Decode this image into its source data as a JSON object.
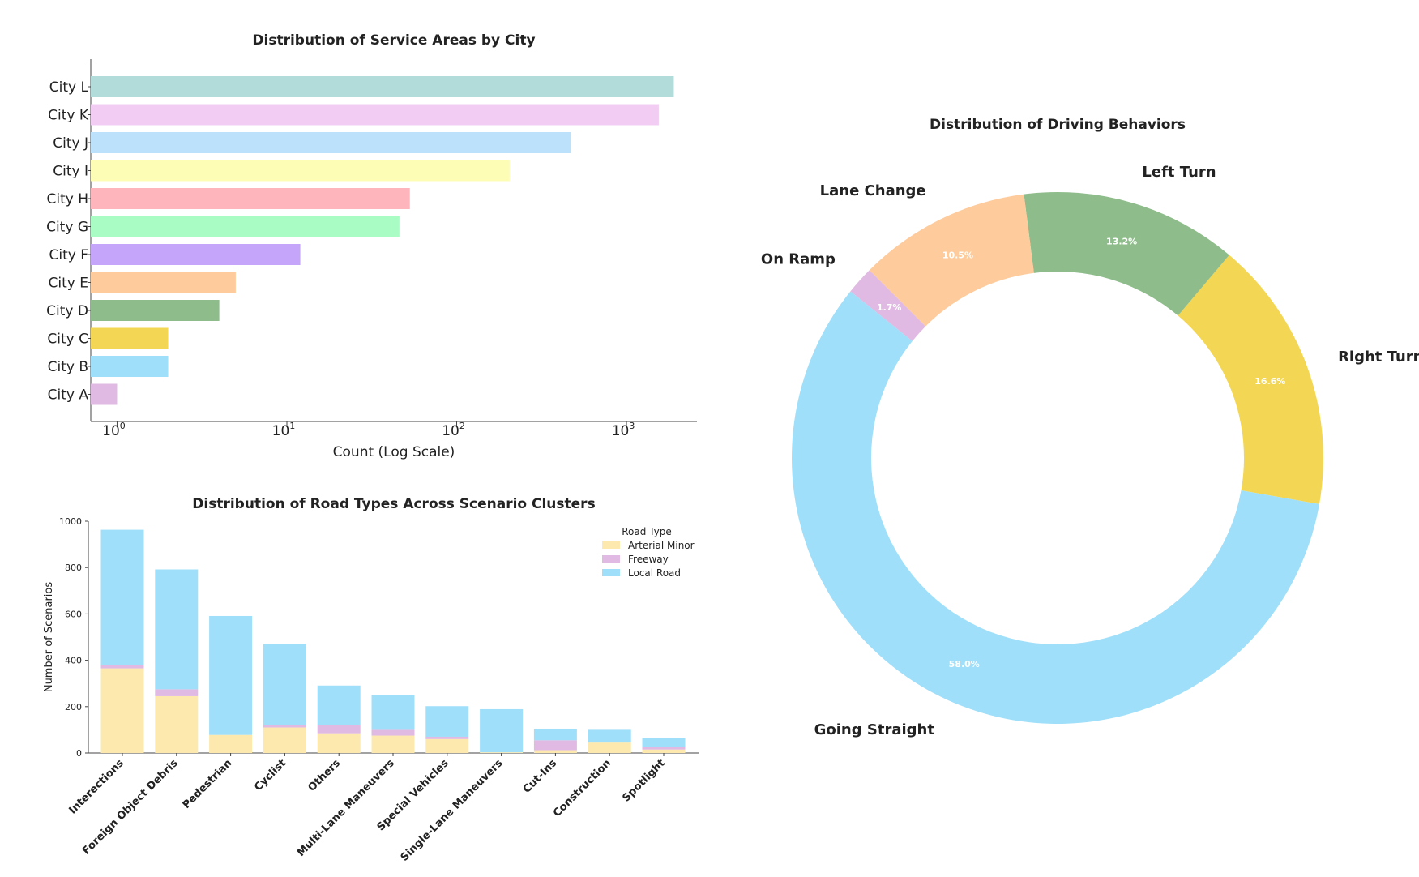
{
  "chart_data": [
    {
      "id": "service-areas",
      "type": "bar",
      "orientation": "horizontal",
      "title": "Distribution of Service Areas by City",
      "xlabel": "Count (Log Scale)",
      "ylabel": "",
      "xscale": "log",
      "xlim": [
        0.7,
        2600
      ],
      "xticks": [
        1,
        10,
        100,
        1000
      ],
      "xtick_labels": [
        "10",
        "10",
        "10",
        "10"
      ],
      "xtick_exponents": [
        "0",
        "1",
        "2",
        "3"
      ],
      "categories": [
        "City L",
        "City K",
        "City J",
        "City I",
        "City H",
        "City G",
        "City F",
        "City E",
        "City D",
        "City C",
        "City B",
        "City A"
      ],
      "values": [
        1900,
        1550,
        470,
        205,
        53,
        46,
        12,
        5,
        4,
        2,
        2,
        1
      ],
      "colors": [
        "#b2dcd9",
        "#f2ccf3",
        "#bbe1fb",
        "#fdfdb6",
        "#ffb5bc",
        "#a9fdc4",
        "#c4a5fa",
        "#fecb9c",
        "#8ebd8b",
        "#f3d653",
        "#a0dff9",
        "#e0bae2"
      ]
    },
    {
      "id": "road-types",
      "type": "bar",
      "stacked": true,
      "title": "Distribution of Road Types Across Scenario Clusters",
      "xlabel": "",
      "ylabel": "Number of Scenarios",
      "ylim": [
        0,
        1000
      ],
      "yticks": [
        "0",
        "200",
        "400",
        "600",
        "800",
        "1000"
      ],
      "legend_title": "Road Type",
      "legend_position": "top-right",
      "categories": [
        "Interections",
        "Foreign Object Debris",
        "Pedestrian",
        "Cyclist",
        "Others",
        "Multi-Lane Maneuvers",
        "Special Vehicles",
        "Single-Lane Maneuvers",
        "Cut-Ins",
        "Construction",
        "Spotlight"
      ],
      "series": [
        {
          "name": "Arterial Minor",
          "color": "#fde9ae",
          "values": [
            365,
            245,
            78,
            110,
            85,
            75,
            60,
            3,
            12,
            45,
            15
          ]
        },
        {
          "name": "Freeway",
          "color": "#e0bae2",
          "values": [
            15,
            30,
            0,
            10,
            35,
            25,
            10,
            0,
            43,
            0,
            12
          ]
        },
        {
          "name": "Local Road",
          "color": "#a0dff9",
          "values": [
            583,
            517,
            513,
            349,
            171,
            151,
            132,
            186,
            50,
            55,
            37
          ]
        }
      ]
    },
    {
      "id": "driving-behaviors",
      "type": "pie",
      "donut": true,
      "title": "Distribution of Driving Behaviors",
      "labels": [
        "Right Turn",
        "Left Turn",
        "Lane Change",
        "On Ramp",
        "Going Straight"
      ],
      "values": [
        16.6,
        13.2,
        10.5,
        1.7,
        58.0
      ],
      "pct_labels": [
        "16.6%",
        "13.2%",
        "10.5%",
        "1.7%",
        "58.0%"
      ],
      "colors": [
        "#f3d653",
        "#8ebd8b",
        "#fecb9c",
        "#e0bae2",
        "#a0dff9"
      ]
    }
  ]
}
